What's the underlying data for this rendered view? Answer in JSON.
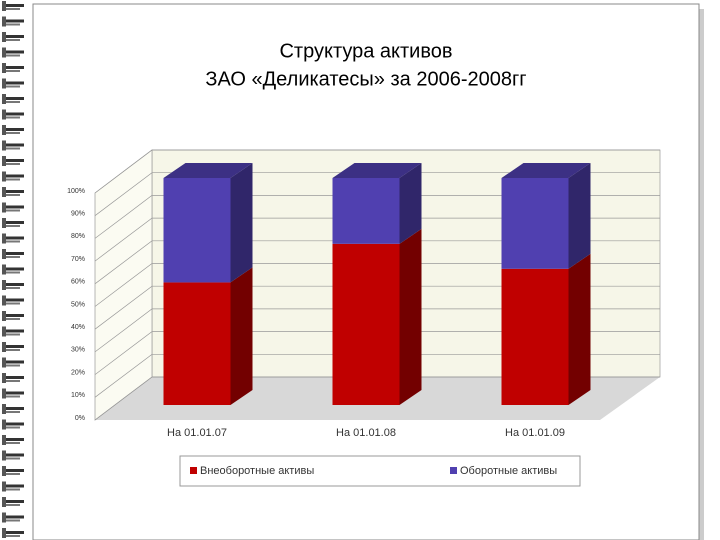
{
  "chart_data": {
    "type": "bar3d_stacked",
    "title": "Структура активов",
    "subtitle": "ЗАО «Деликатесы» за 2006-2008гг",
    "categories": [
      "На 01.01.07",
      "На 01.01.08",
      "На 01.01.09"
    ],
    "series": [
      {
        "name": "Внеоборотные активы",
        "color": "#c00000",
        "values": [
          54,
          71,
          60
        ]
      },
      {
        "name": "Оборотные активы",
        "color": "#5040b0",
        "values": [
          46,
          29,
          40
        ]
      }
    ],
    "ylim": [
      0,
      100
    ],
    "yticks": [
      {
        "value": 0,
        "label": "0%"
      },
      {
        "value": 10,
        "label": "10%"
      },
      {
        "value": 20,
        "label": "20%"
      },
      {
        "value": 30,
        "label": "30%"
      },
      {
        "value": 40,
        "label": "40%"
      },
      {
        "value": 50,
        "label": "50%"
      },
      {
        "value": 60,
        "label": "60%"
      },
      {
        "value": 70,
        "label": "70%"
      },
      {
        "value": 80,
        "label": "80%"
      },
      {
        "value": 90,
        "label": "90%"
      },
      {
        "value": 100,
        "label": "100%"
      }
    ],
    "grid": true,
    "legend": "bottom"
  }
}
